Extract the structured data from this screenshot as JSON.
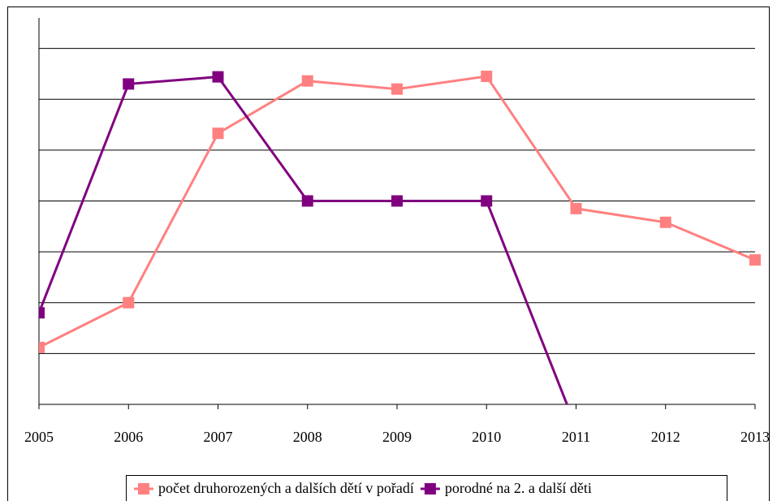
{
  "chart_data": {
    "type": "line",
    "categories": [
      "2005",
      "2006",
      "2007",
      "2008",
      "2009",
      "2010",
      "2011",
      "2012",
      "2013"
    ],
    "series": [
      {
        "name": "počet druhorozených a dalších dětí v pořadí",
        "color": "#ff8080",
        "values": [
          1.12,
          2.0,
          5.33,
          6.36,
          6.2,
          6.45,
          3.85,
          3.58,
          2.84
        ]
      },
      {
        "name": "porodné na 2. a další děti",
        "color": "#800080",
        "values": [
          1.8,
          6.3,
          6.44,
          4.0,
          4.0,
          4.0,
          -0.45,
          null,
          null
        ]
      }
    ],
    "ylim": [
      0,
      7.6
    ],
    "yticks": [
      0,
      1,
      2,
      3,
      4,
      5,
      6,
      7
    ],
    "grid": true,
    "legend": "bottom"
  }
}
